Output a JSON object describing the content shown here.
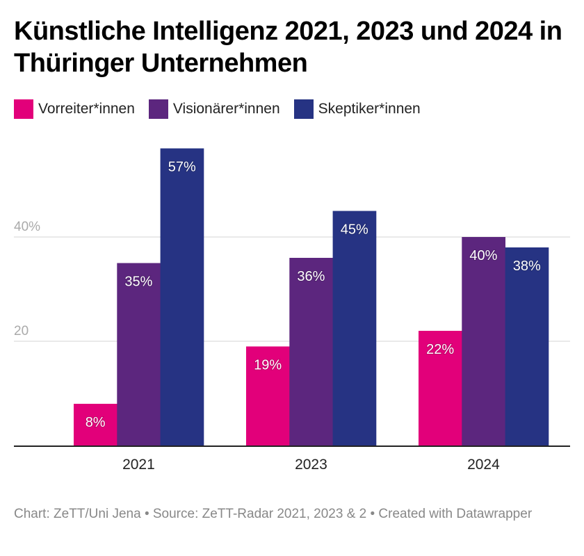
{
  "chart_data": {
    "type": "bar",
    "title": "Künstliche Intelligenz 2021, 2023 und 2024 in Thüringer Unternehmen",
    "categories": [
      "2021",
      "2023",
      "2024"
    ],
    "series": [
      {
        "name": "Vorreiter*innen",
        "color": "#e2007a",
        "values": [
          8,
          19,
          22
        ],
        "labels": [
          "8%",
          "19%",
          "22%"
        ]
      },
      {
        "name": "Visionärer*innen",
        "color": "#5c267e",
        "values": [
          35,
          36,
          40
        ],
        "labels": [
          "35%",
          "36%",
          "40%"
        ]
      },
      {
        "name": "Skeptiker*innen",
        "color": "#263383",
        "values": [
          57,
          45,
          38
        ],
        "labels": [
          "57%",
          "45%",
          "38%"
        ]
      }
    ],
    "yticks": [
      {
        "value": 20,
        "label": "20"
      },
      {
        "value": 40,
        "label": "40%"
      }
    ],
    "ylim": [
      0,
      57
    ],
    "xlabel": "",
    "ylabel": "",
    "grid": true,
    "legend_position": "top-left"
  },
  "footer": "Chart: ZeTT/Uni Jena • Source: ZeTT-Radar 2021, 2023 & 2 • Created with Datawrapper"
}
